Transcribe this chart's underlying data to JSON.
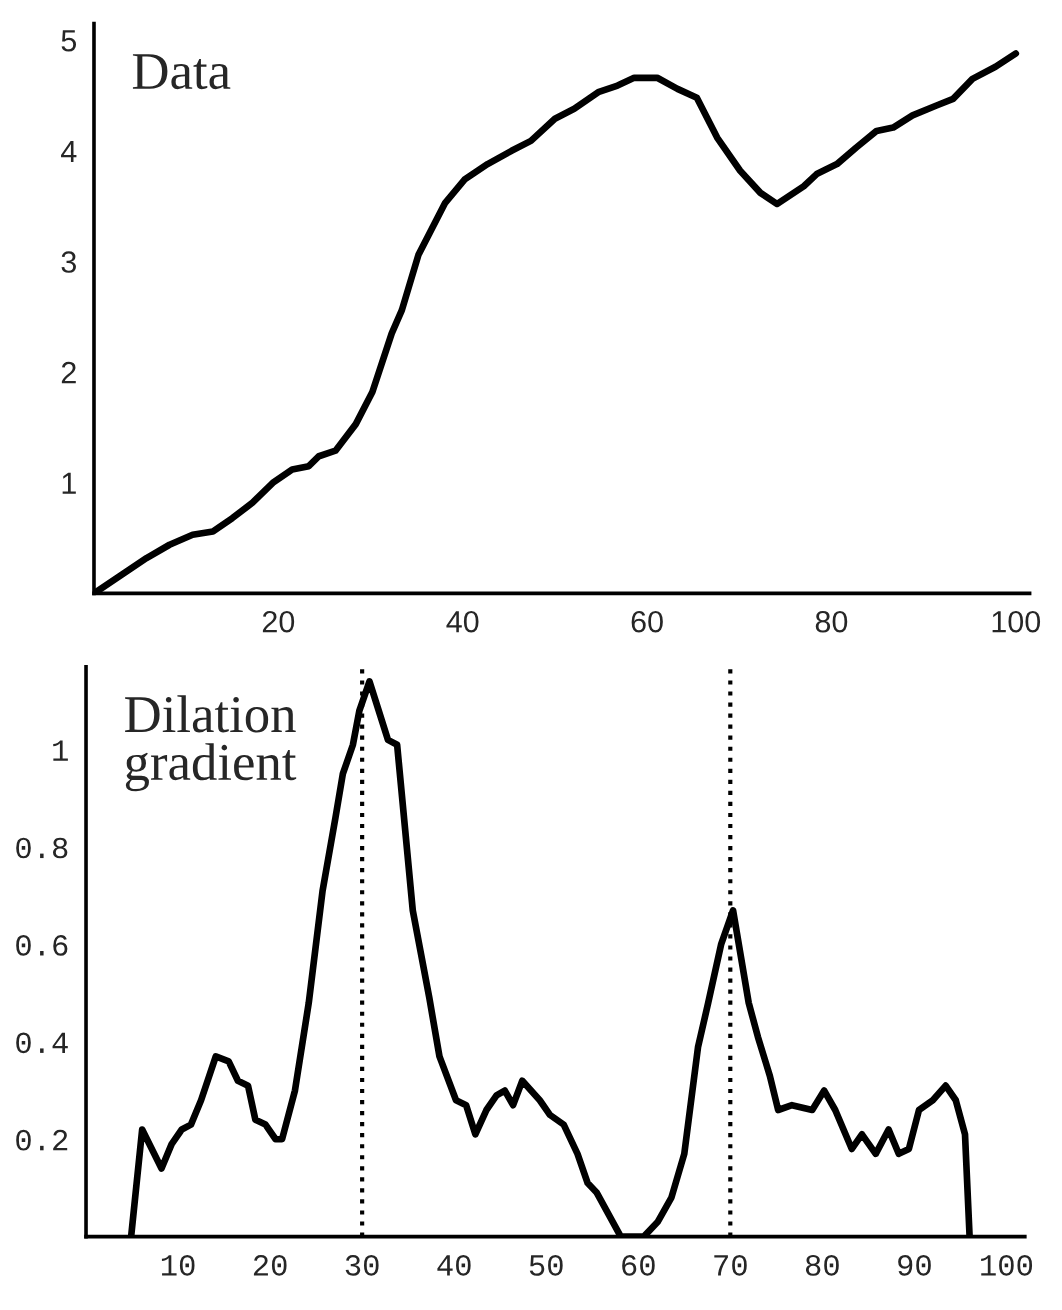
{
  "chart_data": [
    {
      "type": "line",
      "title": "Data",
      "x": [
        0,
        5.7,
        8.2,
        10.7,
        12.9,
        15.0,
        17.2,
        19.4,
        21.5,
        23.3,
        24.4,
        26.2,
        28.4,
        30.2,
        32.3,
        33.4,
        35.2,
        38.1,
        40.2,
        42.7,
        45.3,
        47.4,
        50.0,
        52.1,
        54.7,
        56.8,
        58.6,
        61.1,
        63.3,
        65.4,
        67.6,
        70.1,
        72.3,
        74.1,
        77.0,
        78.4,
        80.6,
        82.7,
        84.9,
        86.7,
        88.8,
        91.4,
        93.2,
        95.3,
        97.8,
        100
      ],
      "series": [
        {
          "color": "#000000",
          "values": [
            0,
            0.32,
            0.44,
            0.53,
            0.56,
            0.68,
            0.82,
            1.0,
            1.12,
            1.15,
            1.24,
            1.29,
            1.53,
            1.82,
            2.35,
            2.56,
            3.06,
            3.53,
            3.74,
            3.88,
            4.0,
            4.09,
            4.29,
            4.38,
            4.53,
            4.59,
            4.66,
            4.66,
            4.56,
            4.48,
            4.12,
            3.82,
            3.62,
            3.52,
            3.68,
            3.79,
            3.88,
            4.03,
            4.18,
            4.21,
            4.32,
            4.41,
            4.47,
            4.65,
            4.76,
            4.88
          ]
        }
      ],
      "xlim": [
        0,
        101.5
      ],
      "ylim": [
        0,
        5.15
      ],
      "xticks": [
        20,
        40,
        60,
        80,
        100
      ],
      "yticks": [
        1,
        2,
        3,
        4,
        5
      ],
      "grid": false,
      "legend": false,
      "marker": "none",
      "line_style": "solid"
    },
    {
      "type": "line",
      "title": "Dilation\ngradient",
      "x": [
        4.9,
        6.1,
        8.2,
        9.3,
        10.4,
        11.4,
        12.5,
        14.1,
        15.5,
        16.5,
        17.6,
        18.4,
        19.5,
        20.6,
        21.3,
        22.7,
        24.2,
        25.7,
        27.1,
        27.9,
        29.0,
        29.7,
        30.8,
        31.8,
        32.8,
        33.8,
        35.5,
        37.3,
        38.4,
        40.2,
        41.3,
        42.3,
        43.5,
        44.6,
        45.5,
        46.4,
        47.4,
        49.3,
        50.4,
        51.9,
        53.4,
        54.5,
        55.5,
        58.1,
        60.6,
        62.1,
        63.6,
        65.0,
        66.5,
        67.6,
        69.0,
        70.3,
        72.0,
        73.0,
        74.3,
        75.2,
        76.7,
        78.9,
        80.2,
        81.4,
        83.2,
        84.3,
        85.8,
        87.2,
        88.3,
        89.4,
        90.5,
        92.0,
        93.4,
        94.5,
        95.5,
        96.0
      ],
      "series": [
        {
          "color": "#000000",
          "values": [
            0,
            0.22,
            0.14,
            0.19,
            0.22,
            0.23,
            0.28,
            0.37,
            0.36,
            0.32,
            0.31,
            0.24,
            0.23,
            0.2,
            0.2,
            0.3,
            0.48,
            0.71,
            0.86,
            0.95,
            1.01,
            1.08,
            1.14,
            1.08,
            1.02,
            1.01,
            0.67,
            0.49,
            0.37,
            0.28,
            0.27,
            0.21,
            0.26,
            0.29,
            0.3,
            0.27,
            0.32,
            0.28,
            0.25,
            0.23,
            0.17,
            0.11,
            0.09,
            0,
            0,
            0.03,
            0.08,
            0.17,
            0.39,
            0.48,
            0.6,
            0.67,
            0.48,
            0.41,
            0.33,
            0.26,
            0.27,
            0.26,
            0.3,
            0.26,
            0.18,
            0.21,
            0.17,
            0.22,
            0.17,
            0.18,
            0.26,
            0.28,
            0.31,
            0.28,
            0.21,
            0
          ]
        }
      ],
      "xlim": [
        0,
        102
      ],
      "ylim": [
        0,
        1.17
      ],
      "xticks": [
        10,
        20,
        30,
        40,
        50,
        60,
        70,
        80,
        90,
        100
      ],
      "yticks": [
        0.2,
        0.4,
        0.6,
        0.8,
        1
      ],
      "grid": false,
      "legend": false,
      "marker": "none",
      "line_style": "solid",
      "ref_lines": [
        {
          "axis": "x",
          "value": 30,
          "color": "#000000",
          "line_style": "dotted"
        },
        {
          "axis": "x",
          "value": 70,
          "color": "#000000",
          "line_style": "dotted"
        }
      ]
    }
  ]
}
